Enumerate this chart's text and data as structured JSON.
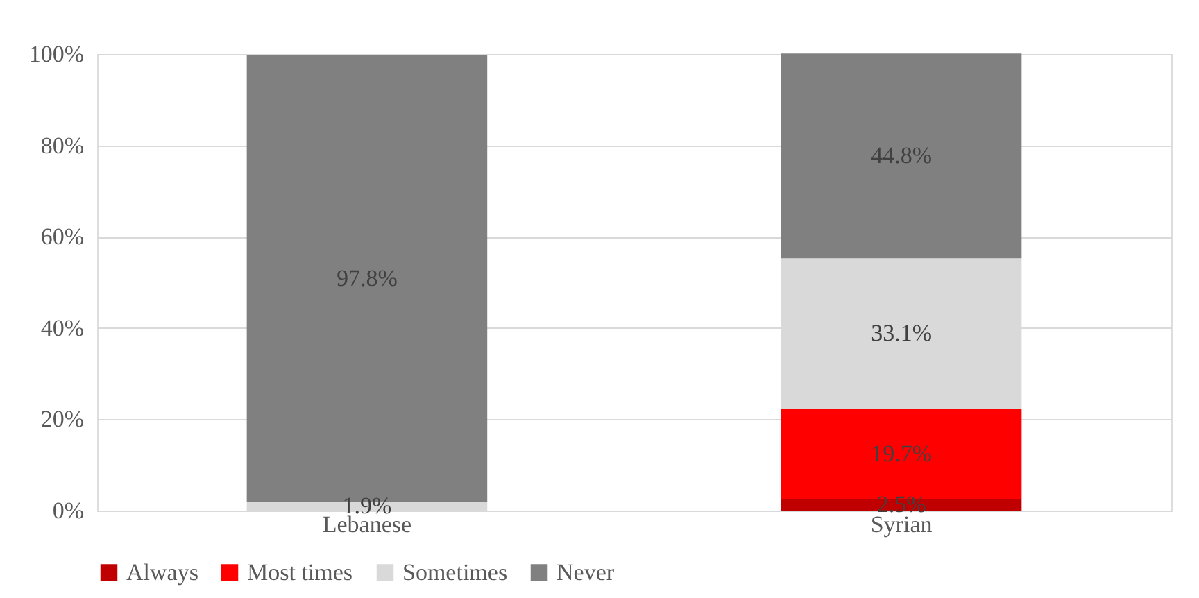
{
  "chart_data": {
    "type": "bar",
    "stacked": true,
    "categories": [
      "Lebanese",
      "Syrian"
    ],
    "series": [
      {
        "name": "Always",
        "color": "#c00000",
        "values": [
          null,
          2.5
        ],
        "value_labels": [
          null,
          "2.5%"
        ]
      },
      {
        "name": "Most times",
        "color": "#ff0000",
        "values": [
          null,
          19.7
        ],
        "value_labels": [
          null,
          "19.7%"
        ]
      },
      {
        "name": "Sometimes",
        "color": "#d9d9d9",
        "values": [
          1.9,
          33.1
        ],
        "value_labels": [
          "1.9%",
          "33.1%"
        ]
      },
      {
        "name": "Never",
        "color": "#808080",
        "values": [
          97.8,
          44.8
        ],
        "value_labels": [
          "97.8%",
          "44.8%"
        ]
      }
    ],
    "ylim": [
      0,
      100
    ],
    "yticks": [
      {
        "value": 0,
        "label": "0%"
      },
      {
        "value": 20,
        "label": "20%"
      },
      {
        "value": 40,
        "label": "40%"
      },
      {
        "value": 60,
        "label": "60%"
      },
      {
        "value": 80,
        "label": "80%"
      },
      {
        "value": 100,
        "label": "100%"
      }
    ],
    "grid": "y",
    "legend": "bottom"
  }
}
